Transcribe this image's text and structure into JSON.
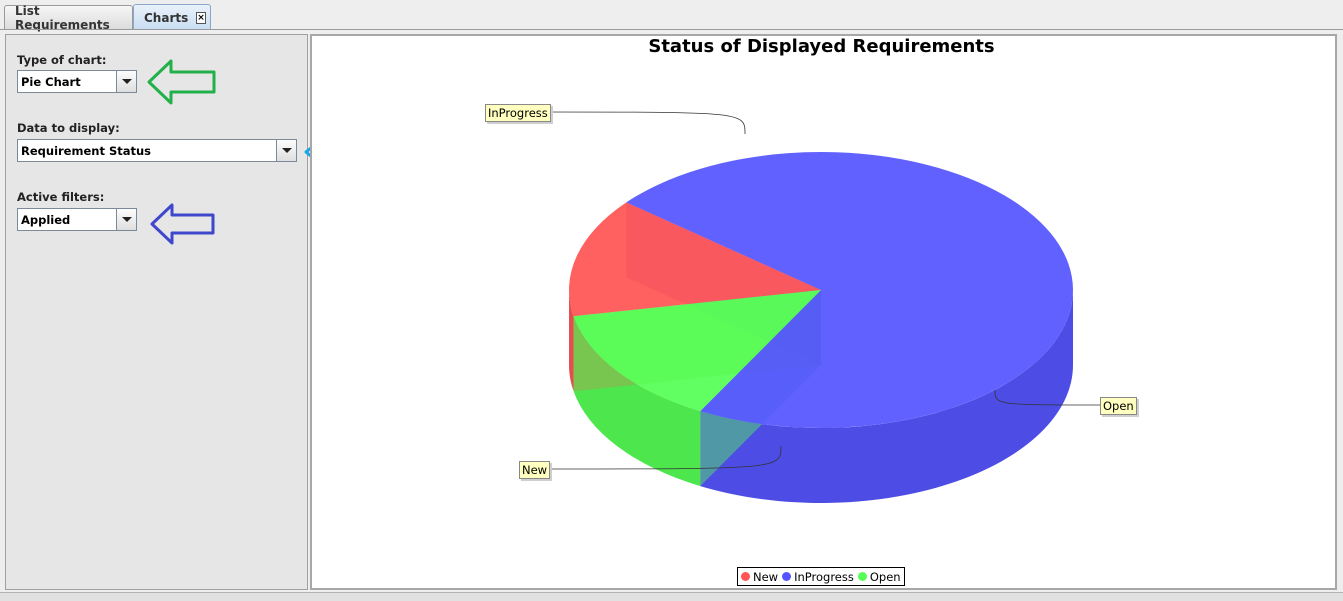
{
  "tabs": [
    {
      "label": "List Requirements"
    },
    {
      "label": "Charts",
      "close": "×"
    }
  ],
  "controls": {
    "chart_type": {
      "label": "Type of chart:",
      "value": "Pie Chart"
    },
    "data_display": {
      "label": "Data to display:",
      "value": "Requirement Status"
    },
    "filters": {
      "label": "Active filters:",
      "value": "Applied"
    }
  },
  "annotation_arrows": {
    "green": "#22b04a",
    "light_blue": "#15a6e6",
    "dark_blue": "#3f48cc"
  },
  "chart_data": {
    "type": "pie",
    "title": "Status of Displayed Requirements",
    "slices": [
      {
        "name": "New",
        "value": 14,
        "color": "#ff5555"
      },
      {
        "name": "InProgress",
        "value": 72,
        "color": "#5555ff"
      },
      {
        "name": "Open",
        "value": 14,
        "color": "#55ff55"
      }
    ],
    "legend": {
      "placement": "bottom",
      "items": [
        "New",
        "InProgress",
        "Open"
      ]
    },
    "three_d": true
  }
}
